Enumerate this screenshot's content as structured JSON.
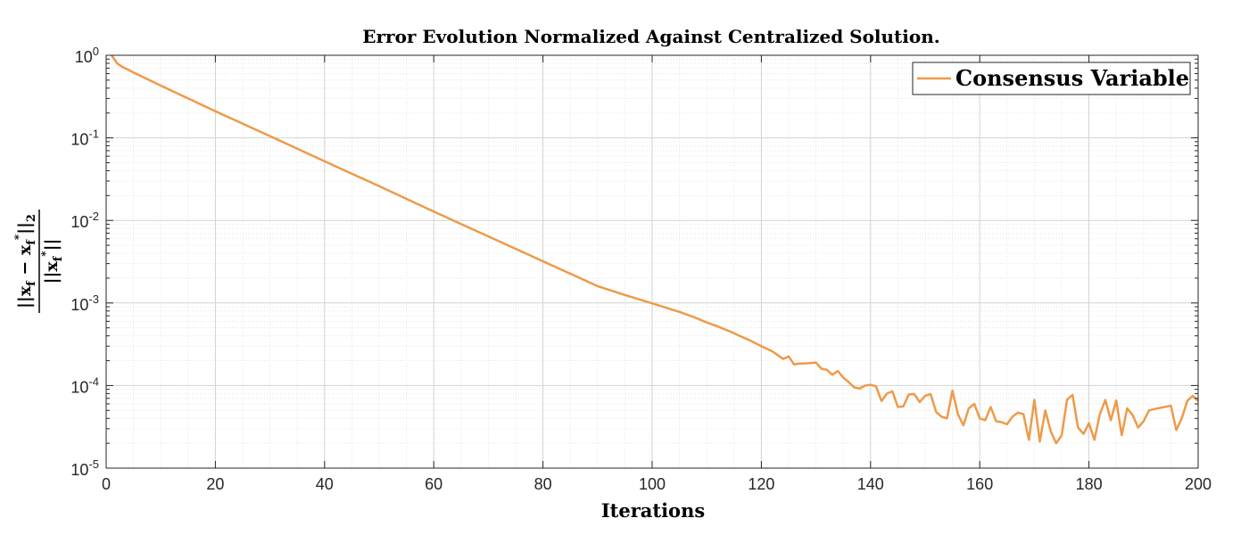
{
  "chart_data": {
    "type": "line",
    "title": "Error Evolution Normalized Against Centralized Solution.",
    "xlabel": "Iterations",
    "ylabel": "||x_f − x_f*||_2 / ||x_f*||",
    "xlim": [
      0,
      200
    ],
    "ylim": [
      1e-05,
      1
    ],
    "yscale": "log",
    "grid": true,
    "minor_grid": true,
    "legend_position": "top-right",
    "x_ticks": [
      0,
      20,
      40,
      60,
      80,
      100,
      120,
      140,
      160,
      180,
      200
    ],
    "y_ticks": [
      {
        "base": "10",
        "exp": "-5"
      },
      {
        "base": "10",
        "exp": "-4"
      },
      {
        "base": "10",
        "exp": "-3"
      },
      {
        "base": "10",
        "exp": "-2"
      },
      {
        "base": "10",
        "exp": "-1"
      },
      {
        "base": "10",
        "exp": "0"
      }
    ],
    "series": [
      {
        "name": "Consensus Variable",
        "color": "#EE9A49",
        "x": [
          1,
          2,
          3,
          4,
          5,
          10,
          20,
          30,
          40,
          50,
          60,
          70,
          80,
          90,
          95,
          100,
          105,
          108,
          110,
          112,
          114,
          116,
          118,
          120,
          122,
          124,
          125,
          126,
          127,
          128,
          130,
          131,
          132,
          133,
          134,
          135,
          136,
          137,
          138,
          139,
          140,
          141,
          142,
          143,
          144,
          145,
          146,
          147,
          148,
          149,
          150,
          151,
          152,
          153,
          154,
          155,
          156,
          157,
          158,
          159,
          160,
          161,
          162,
          163,
          164,
          165,
          166,
          167,
          168,
          169,
          170,
          171,
          172,
          173,
          174,
          175,
          176,
          177,
          178,
          179,
          180,
          181,
          182,
          183,
          184,
          185,
          186,
          187,
          188,
          189,
          190,
          191,
          192,
          195,
          196,
          197,
          198,
          199,
          200
        ],
        "y": [
          1.0,
          0.8,
          0.72,
          0.67,
          0.62,
          0.43,
          0.21,
          0.105,
          0.052,
          0.026,
          0.0128,
          0.0064,
          0.0032,
          0.0016,
          0.00125,
          0.00099,
          0.00078,
          0.00066,
          0.00058,
          0.00052,
          0.00046,
          0.0004,
          0.00035,
          0.0003,
          0.00026,
          0.00021,
          0.000225,
          0.00018,
          0.000185,
          0.000185,
          0.00019,
          0.00016,
          0.000155,
          0.000135,
          0.00015,
          0.000125,
          0.00011,
          9.5e-05,
          9.2e-05,
          0.0001,
          0.000102,
          9.8e-05,
          6.5e-05,
          8e-05,
          8.5e-05,
          5.5e-05,
          5.6e-05,
          7.8e-05,
          7.9e-05,
          6.3e-05,
          7.5e-05,
          7.9e-05,
          4.8e-05,
          4.2e-05,
          4e-05,
          8.7e-05,
          4.5e-05,
          3.3e-05,
          5.3e-05,
          6e-05,
          4e-05,
          3.8e-05,
          5.5e-05,
          3.7e-05,
          3.6e-05,
          3.4e-05,
          4.2e-05,
          4.7e-05,
          4.5e-05,
          2.2e-05,
          6.7e-05,
          2.1e-05,
          5e-05,
          2.8e-05,
          2e-05,
          2.5e-05,
          6.8e-05,
          7.7e-05,
          3.1e-05,
          2.6e-05,
          3.5e-05,
          2.2e-05,
          4.5e-05,
          6.7e-05,
          3.8e-05,
          6.6e-05,
          2.5e-05,
          5.3e-05,
          4.4e-05,
          3.1e-05,
          3.7e-05,
          5e-05,
          5.2e-05,
          5.7e-05,
          2.9e-05,
          4e-05,
          6.5e-05,
          7.5e-05,
          6.5e-05
        ]
      }
    ]
  }
}
